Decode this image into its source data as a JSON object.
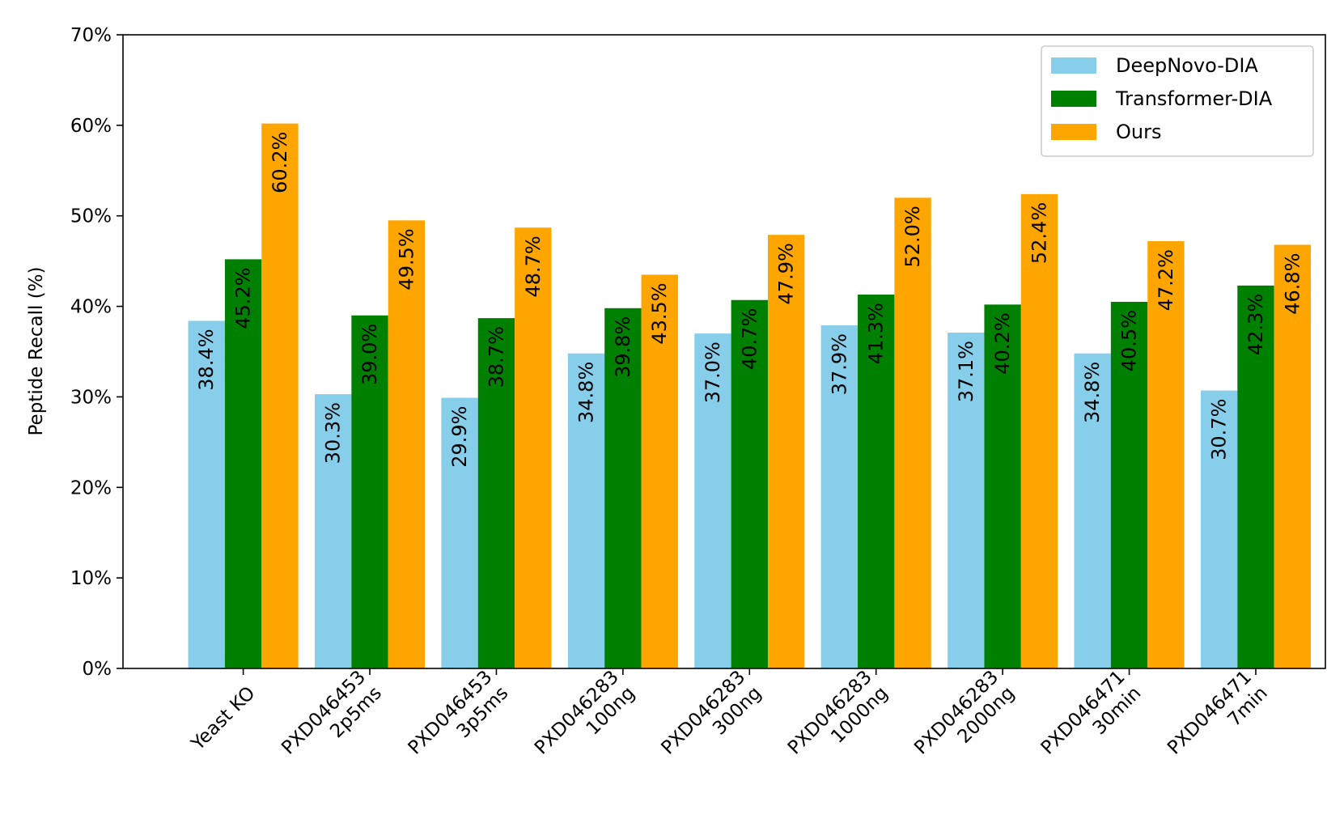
{
  "chart_data": {
    "type": "bar",
    "title": "",
    "xlabel": "",
    "ylabel": "Peptide Recall (%)",
    "ylim": [
      0,
      70
    ],
    "yticks": [
      "0%",
      "10%",
      "20%",
      "30%",
      "40%",
      "50%",
      "60%",
      "70%"
    ],
    "categories": [
      [
        "Yeast KO"
      ],
      [
        "PXD046453",
        "2p5ms"
      ],
      [
        "PXD046453",
        "3p5ms"
      ],
      [
        "PXD046283",
        "100ng"
      ],
      [
        "PXD046283",
        "300ng"
      ],
      [
        "PXD046283",
        "1000ng"
      ],
      [
        "PXD046283",
        "2000ng"
      ],
      [
        "PXD046471",
        "30min"
      ],
      [
        "PXD046471",
        "7min"
      ]
    ],
    "series": [
      {
        "name": "DeepNovo-DIA",
        "color": "#87ceeb",
        "values": [
          38.4,
          30.3,
          29.9,
          34.8,
          37.0,
          37.9,
          37.1,
          34.8,
          30.7
        ],
        "labels": [
          "38.4%",
          "30.3%",
          "29.9%",
          "34.8%",
          "37.0%",
          "37.9%",
          "37.1%",
          "34.8%",
          "30.7%"
        ]
      },
      {
        "name": "Transformer-DIA",
        "color": "#008000",
        "values": [
          45.2,
          39.0,
          38.7,
          39.8,
          40.7,
          41.3,
          40.2,
          40.5,
          42.3
        ],
        "labels": [
          "45.2%",
          "39.0%",
          "38.7%",
          "39.8%",
          "40.7%",
          "41.3%",
          "40.2%",
          "40.5%",
          "42.3%"
        ]
      },
      {
        "name": "Ours",
        "color": "#ffa500",
        "values": [
          60.2,
          49.5,
          48.7,
          43.5,
          47.9,
          52.0,
          52.4,
          47.2,
          46.8
        ],
        "labels": [
          "60.2%",
          "49.5%",
          "48.7%",
          "43.5%",
          "47.9%",
          "52.0%",
          "52.4%",
          "47.2%",
          "46.8%"
        ]
      }
    ],
    "legend_position": "top-right",
    "grid": false
  }
}
